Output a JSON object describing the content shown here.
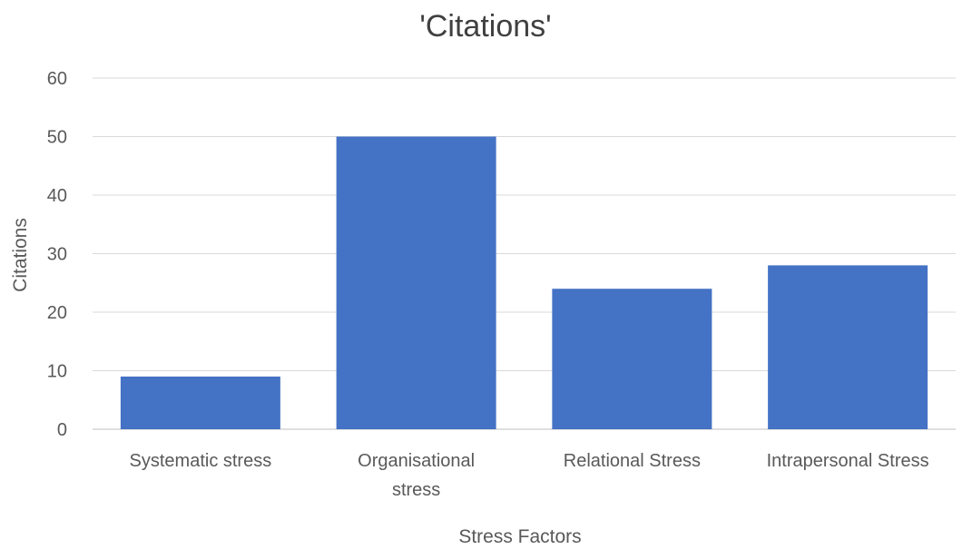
{
  "chart_data": {
    "type": "bar",
    "title": "'Citations'",
    "xlabel": "Stress Factors",
    "ylabel": "Citations",
    "categories": [
      [
        "Systematic stress"
      ],
      [
        "Organisational",
        "stress"
      ],
      [
        "Relational Stress"
      ],
      [
        "Intrapersonal Stress"
      ]
    ],
    "values": [
      9,
      50,
      24,
      28
    ],
    "ylim": [
      0,
      60
    ],
    "yticks": [
      0,
      10,
      20,
      30,
      40,
      50,
      60
    ],
    "grid": true,
    "bar_color": "#4472C4",
    "grid_color": "#D9D9D9"
  }
}
